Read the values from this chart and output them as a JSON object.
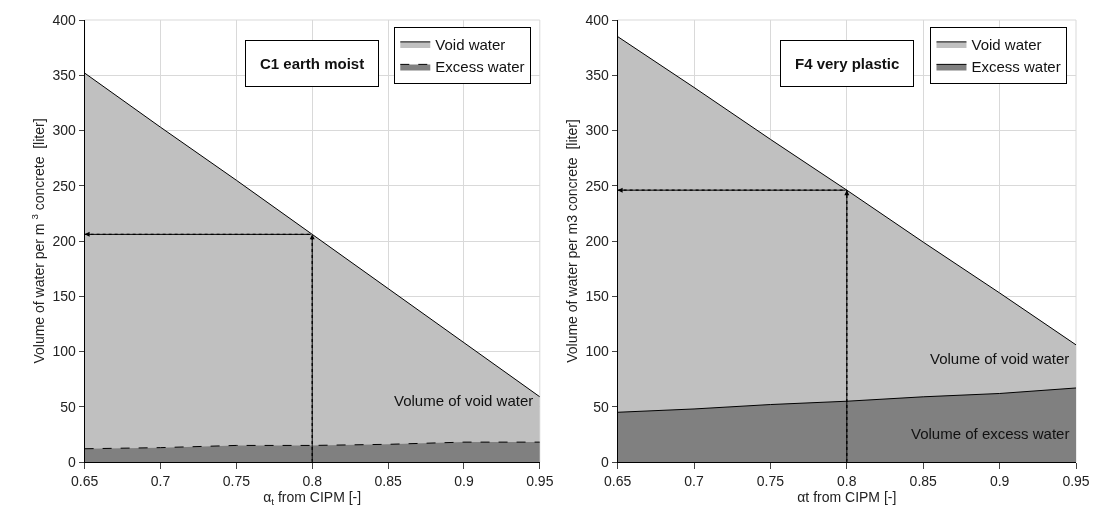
{
  "chart_data": [
    {
      "type": "area",
      "title": "C1 earth moist",
      "xlabel": "α$_{t}$ from CIPM [-]",
      "ylabel": "Volume of water per m $^{3}$ concrete  [liter]",
      "x": [
        0.65,
        0.7,
        0.75,
        0.8,
        0.85,
        0.9,
        0.95
      ],
      "series": [
        {
          "name": "Void water",
          "color": "#c0c0c0",
          "values": [
            352,
            303,
            255,
            206,
            157,
            108,
            59
          ],
          "line_style": "solid"
        },
        {
          "name": "Excess water",
          "color": "#808080",
          "values": [
            12,
            13,
            15,
            15,
            16,
            18,
            18
          ],
          "line_style": "dashed"
        }
      ],
      "xlim": [
        0.65,
        0.95
      ],
      "xticks": [
        0.65,
        0.7,
        0.75,
        0.8,
        0.85,
        0.9,
        0.95
      ],
      "ylim": [
        0,
        400
      ],
      "yticks": [
        0,
        50,
        100,
        150,
        200,
        250,
        300,
        350,
        400
      ],
      "ref_lines": [
        {
          "axis": "x",
          "value": 0.8,
          "line_style": "dotted"
        },
        {
          "axis": "y",
          "value": 206,
          "line_style": "dotted"
        }
      ],
      "annotations": [
        "Volume of void water"
      ],
      "grid": true,
      "legend": "top right"
    },
    {
      "type": "area",
      "title": "F4 very plastic",
      "xlabel": "αt from CIPM [-]",
      "ylabel": "Volume of water per m3 concrete  [liter]",
      "x": [
        0.65,
        0.7,
        0.75,
        0.8,
        0.85,
        0.9,
        0.95
      ],
      "series": [
        {
          "name": "Void water",
          "color": "#c0c0c0",
          "values": [
            385,
            339,
            292,
            246,
            199,
            153,
            106
          ],
          "line_style": "solid"
        },
        {
          "name": "Excess water",
          "color": "#808080",
          "values": [
            45,
            48,
            52,
            55,
            59,
            62,
            67
          ],
          "line_style": "solid"
        }
      ],
      "xlim": [
        0.65,
        0.95
      ],
      "xticks": [
        0.65,
        0.7,
        0.75,
        0.8,
        0.85,
        0.9,
        0.95
      ],
      "ylim": [
        0,
        400
      ],
      "yticks": [
        0,
        50,
        100,
        150,
        200,
        250,
        300,
        350,
        400
      ],
      "ref_lines": [
        {
          "axis": "x",
          "value": 0.8,
          "line_style": "dotted"
        },
        {
          "axis": "y",
          "value": 246,
          "line_style": "dotted"
        }
      ],
      "annotations": [
        "Volume of void water",
        "Volume of excess water"
      ],
      "grid": true,
      "legend": "top right"
    }
  ]
}
